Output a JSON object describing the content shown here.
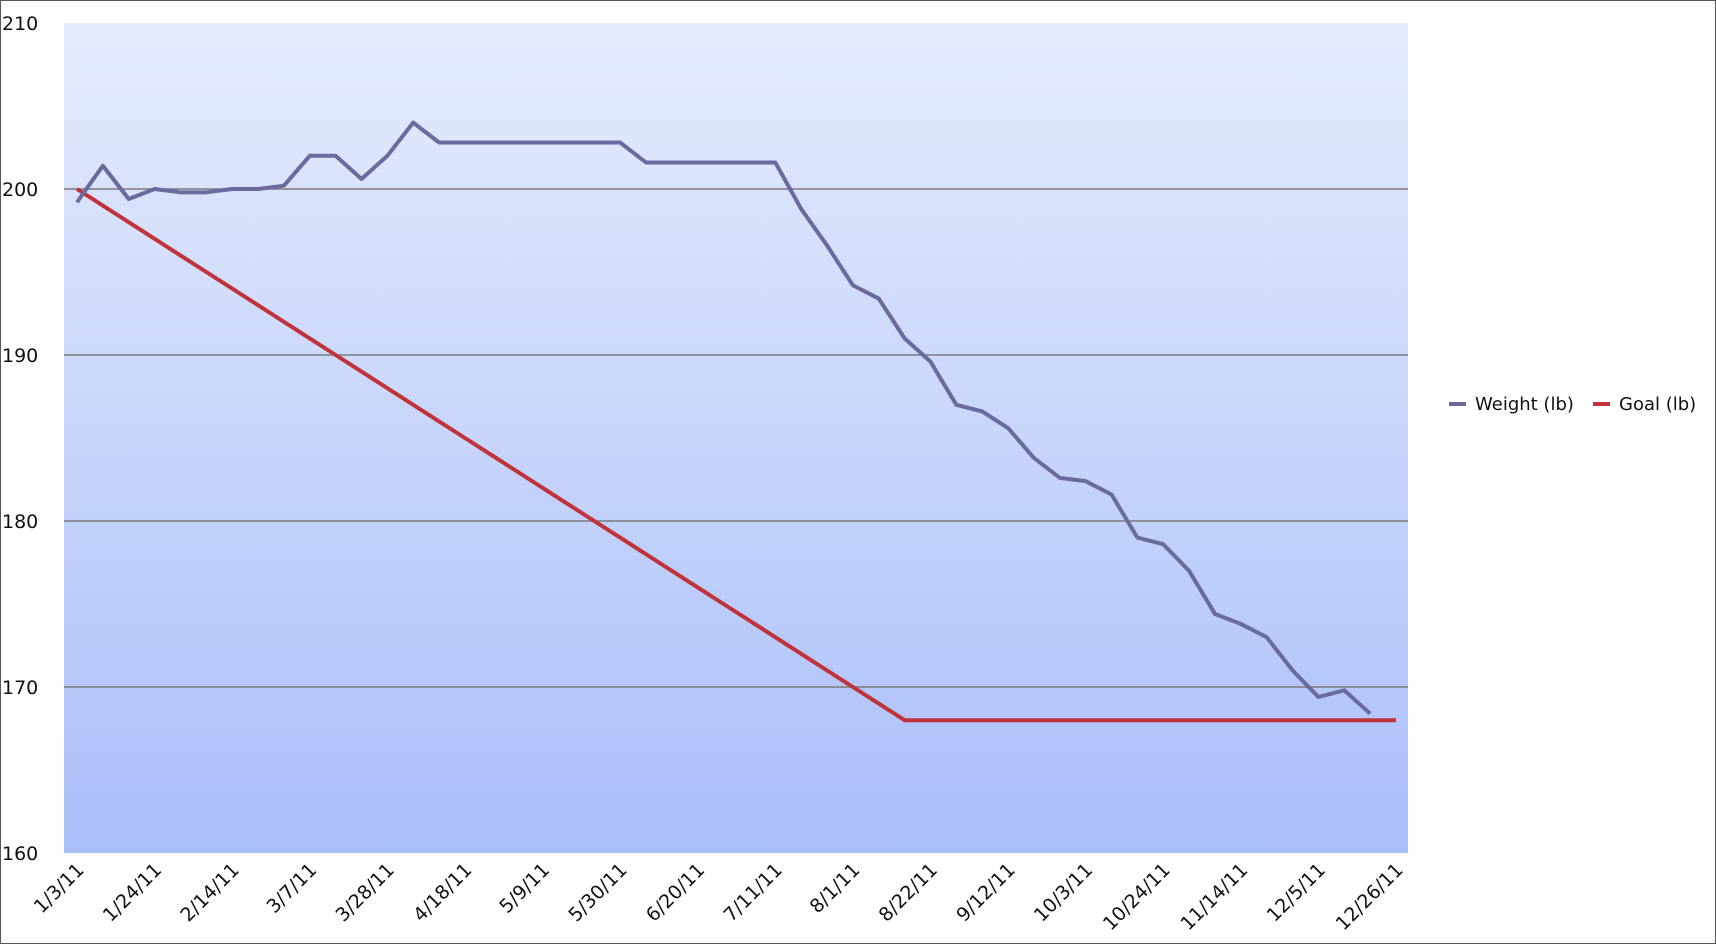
{
  "chart_data": {
    "type": "line",
    "title": "",
    "xlabel": "",
    "ylabel": "",
    "ylim": [
      160,
      210
    ],
    "yticks": [
      "160",
      "170",
      "180",
      "190",
      "200",
      "210"
    ],
    "xticks": [
      "1/3/11",
      "1/24/11",
      "2/14/11",
      "3/7/11",
      "3/28/11",
      "4/18/11",
      "5/9/11",
      "5/30/11",
      "6/20/11",
      "7/11/11",
      "8/1/11",
      "8/22/11",
      "9/12/11",
      "10/3/11",
      "10/24/11",
      "11/14/11",
      "12/5/11",
      "12/26/11"
    ],
    "grid": true,
    "legend_position": "right",
    "background_gradient": [
      "#e6ecfd",
      "#aabffa"
    ],
    "x": [
      "1/3/11",
      "1/10/11",
      "1/17/11",
      "1/24/11",
      "1/31/11",
      "2/7/11",
      "2/14/11",
      "2/21/11",
      "2/28/11",
      "3/7/11",
      "3/14/11",
      "3/21/11",
      "3/28/11",
      "4/4/11",
      "4/11/11",
      "4/18/11",
      "4/25/11",
      "5/2/11",
      "5/9/11",
      "5/16/11",
      "5/23/11",
      "5/30/11",
      "6/6/11",
      "6/13/11",
      "6/20/11",
      "6/27/11",
      "7/4/11",
      "7/11/11",
      "7/18/11",
      "7/25/11",
      "8/1/11",
      "8/8/11",
      "8/15/11",
      "8/22/11",
      "8/29/11",
      "9/5/11",
      "9/12/11",
      "9/19/11",
      "9/26/11",
      "10/3/11",
      "10/10/11",
      "10/17/11",
      "10/24/11",
      "10/31/11",
      "11/7/11",
      "11/14/11",
      "11/21/11",
      "11/28/11",
      "12/5/11",
      "12/12/11",
      "12/19/11",
      "12/26/11"
    ],
    "series": [
      {
        "name": "Weight (lb)",
        "color": "#6a6a9e",
        "values": [
          199.2,
          201.4,
          199.4,
          200.0,
          199.8,
          199.8,
          200.0,
          200.0,
          200.2,
          202.0,
          202.0,
          200.6,
          202.0,
          204.0,
          202.8,
          202.8,
          202.8,
          202.8,
          202.8,
          202.8,
          202.8,
          202.8,
          201.6,
          201.6,
          201.6,
          201.6,
          201.6,
          201.6,
          198.8,
          196.6,
          194.2,
          193.4,
          191.0,
          189.6,
          187.0,
          186.6,
          185.6,
          183.8,
          182.6,
          182.4,
          181.6,
          179.0,
          178.6,
          177.0,
          174.4,
          173.8,
          173.0,
          171.0,
          169.4,
          169.8,
          168.4,
          null
        ]
      },
      {
        "name": "Goal (lb)",
        "color": "#c0333a",
        "values": [
          200.0,
          199.0,
          198.0,
          197.0,
          196.0,
          195.0,
          194.0,
          193.0,
          192.0,
          191.0,
          190.0,
          189.0,
          188.0,
          187.0,
          186.0,
          185.0,
          184.0,
          183.0,
          182.0,
          181.0,
          180.0,
          179.0,
          178.0,
          177.0,
          176.0,
          175.0,
          174.0,
          173.0,
          172.0,
          171.0,
          170.0,
          169.0,
          168.0,
          168.0,
          168.0,
          168.0,
          168.0,
          168.0,
          168.0,
          168.0,
          168.0,
          168.0,
          168.0,
          168.0,
          168.0,
          168.0,
          168.0,
          168.0,
          168.0,
          168.0,
          168.0,
          168.0
        ]
      }
    ]
  }
}
